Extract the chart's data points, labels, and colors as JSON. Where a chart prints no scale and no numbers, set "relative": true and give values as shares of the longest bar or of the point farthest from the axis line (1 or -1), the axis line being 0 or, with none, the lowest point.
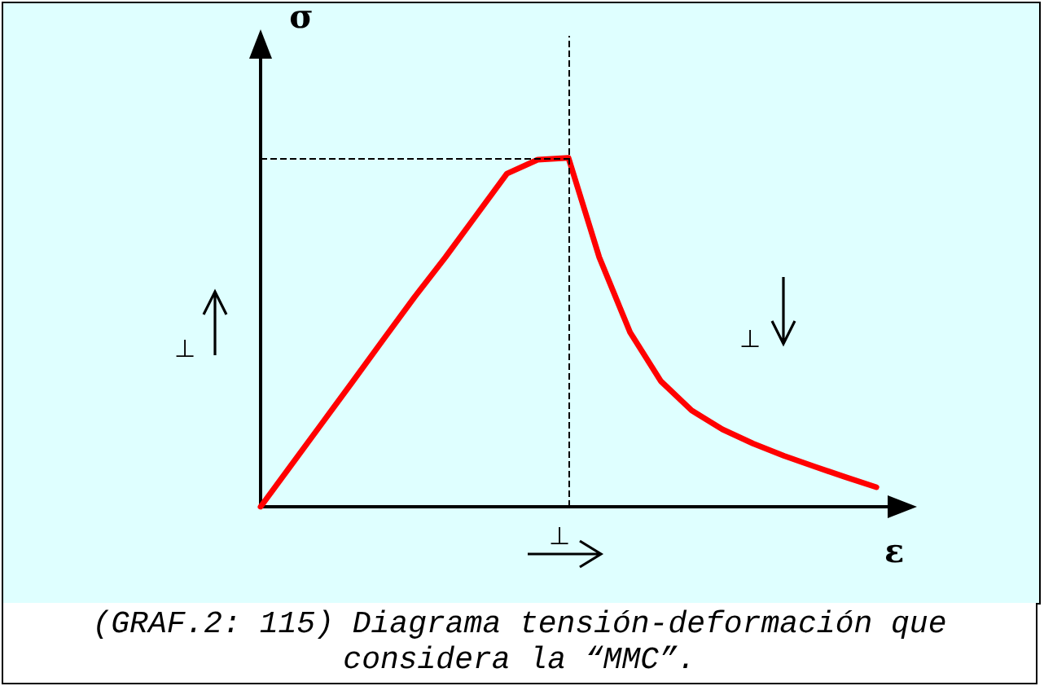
{
  "chart_data": {
    "type": "line",
    "relative": true,
    "xlabel": "ε",
    "ylabel": "σ",
    "categories": [
      null,
      null,
      null,
      null,
      null,
      null,
      null,
      null,
      null,
      null,
      null,
      null,
      null,
      null,
      null,
      null,
      null,
      null,
      null,
      null,
      null,
      null
    ],
    "grid": false,
    "marker": "none",
    "line_style": "solid",
    "series": [
      {
        "color": "#ff0000",
        "values": [
          0,
          0.12,
          0.24,
          0.36,
          0.481,
          0.601,
          0.715,
          0.835,
          0.955,
          0.995,
          1,
          0.715,
          0.5,
          0.36,
          0.276,
          0.222,
          0.181,
          0.146,
          0.115,
          0.085,
          0.056,
          null
        ]
      }
    ],
    "ref_lines": [
      {
        "axis": "x",
        "color": "#000000",
        "line_style": "dashed"
      },
      {
        "axis": "y",
        "value": 1,
        "color": "#000000",
        "line_style": "dashed"
      }
    ],
    "annotations": [
      "⊥",
      "⊥",
      "⊥",
      "(GRAF.2: 115) Diagrama tensión-deformación que considera la “MMC”."
    ]
  }
}
